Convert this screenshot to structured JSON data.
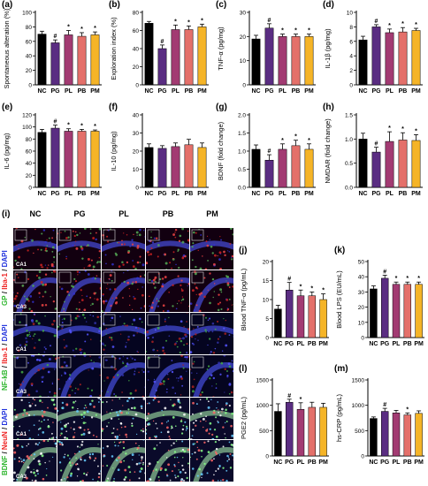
{
  "colors": {
    "NC": "#000000",
    "PG": "#5a2d82",
    "PL": "#a23b72",
    "PB": "#e4706a",
    "PM": "#f5b427"
  },
  "chart_data": [
    {
      "id": "a",
      "label": "(a)",
      "type": "bar",
      "categories": [
        "NC",
        "PG",
        "PL",
        "PB",
        "PM"
      ],
      "values": [
        70,
        58,
        69,
        67,
        69
      ],
      "errors": [
        4,
        4,
        6,
        5,
        4
      ],
      "marks": [
        "",
        "#",
        "*",
        "*",
        "*"
      ],
      "ylabel": "Spontaneous alteration (%)",
      "ylim": [
        0,
        100
      ],
      "yticks": [
        0,
        20,
        40,
        60,
        80,
        100
      ]
    },
    {
      "id": "b",
      "label": "(b)",
      "type": "bar",
      "categories": [
        "NC",
        "PG",
        "PL",
        "PB",
        "PM"
      ],
      "values": [
        68,
        40,
        61,
        61,
        64
      ],
      "errors": [
        2,
        4,
        5,
        4,
        3
      ],
      "marks": [
        "",
        "#",
        "*",
        "*",
        "*"
      ],
      "ylabel": "Exploration index (%)",
      "ylim": [
        0,
        80
      ],
      "yticks": [
        0,
        20,
        40,
        60,
        80
      ]
    },
    {
      "id": "c",
      "label": "(c)",
      "type": "bar",
      "categories": [
        "NC",
        "PG",
        "PL",
        "PB",
        "PM"
      ],
      "values": [
        19,
        23.5,
        20,
        20,
        20
      ],
      "errors": [
        1.5,
        1.8,
        1,
        1,
        1
      ],
      "marks": [
        "",
        "#",
        "*",
        "*",
        "*"
      ],
      "ylabel": "TNF-α (pg/mg)",
      "ylim": [
        0,
        30
      ],
      "yticks": [
        0,
        10,
        20,
        30
      ]
    },
    {
      "id": "d",
      "label": "(d)",
      "type": "bar",
      "categories": [
        "NC",
        "PG",
        "PL",
        "PB",
        "PM"
      ],
      "values": [
        6.2,
        8,
        7.2,
        7.3,
        7.5
      ],
      "errors": [
        0.5,
        0.3,
        0.5,
        0.6,
        0.3
      ],
      "marks": [
        "",
        "#",
        "*",
        "*",
        "*"
      ],
      "ylabel": "IL-1β (pg/mg)",
      "ylim": [
        0,
        10
      ],
      "yticks": [
        0,
        2,
        4,
        6,
        8,
        10
      ]
    },
    {
      "id": "e",
      "label": "(e)",
      "type": "bar",
      "categories": [
        "NC",
        "PG",
        "PL",
        "PB",
        "PM"
      ],
      "values": [
        91,
        98,
        93,
        93,
        93
      ],
      "errors": [
        5,
        5,
        4,
        3,
        2
      ],
      "marks": [
        "",
        "#",
        "*",
        "*",
        "*"
      ],
      "ylabel": "IL-6 (pg/mg)",
      "ylim": [
        0,
        120
      ],
      "yticks": [
        0,
        20,
        40,
        60,
        80,
        100,
        120
      ]
    },
    {
      "id": "f",
      "label": "(f)",
      "type": "bar",
      "categories": [
        "NC",
        "PG",
        "PL",
        "PB",
        "PM"
      ],
      "values": [
        22,
        21.5,
        22.5,
        23.5,
        22
      ],
      "errors": [
        2,
        1.5,
        2,
        3,
        2.5
      ],
      "marks": [
        "",
        "",
        "",
        "",
        ""
      ],
      "ylabel": "IL-10 (pg/mg)",
      "ylim": [
        0,
        40
      ],
      "yticks": [
        0,
        10,
        20,
        30,
        40
      ]
    },
    {
      "id": "g",
      "label": "(g)",
      "type": "bar",
      "categories": [
        "NC",
        "PG",
        "PL",
        "PB",
        "PM"
      ],
      "values": [
        1.05,
        0.75,
        1.05,
        1.15,
        1.05
      ],
      "errors": [
        0.12,
        0.15,
        0.15,
        0.15,
        0.15
      ],
      "marks": [
        "",
        "#",
        "*",
        "*",
        "*"
      ],
      "ylabel": "BDNF (fold change)",
      "ylim": [
        0,
        2
      ],
      "yticks": [
        0,
        0.5,
        1,
        1.5,
        2
      ],
      "ytickfmt": "1"
    },
    {
      "id": "h",
      "label": "(h)",
      "type": "bar",
      "categories": [
        "NC",
        "PG",
        "PL",
        "PB",
        "PM"
      ],
      "values": [
        1,
        0.73,
        0.95,
        0.98,
        0.97
      ],
      "errors": [
        0.12,
        0.1,
        0.2,
        0.15,
        0.12
      ],
      "marks": [
        "",
        "#",
        "*",
        "*",
        "*"
      ],
      "ylabel": "NMDAR  (fold change)",
      "ylim": [
        0,
        1.5
      ],
      "yticks": [
        0,
        0.5,
        1,
        1.5
      ],
      "ytickfmt": "1"
    },
    {
      "id": "j",
      "label": "(j)",
      "type": "bar",
      "categories": [
        "NC",
        "PG",
        "PL",
        "PB",
        "PM"
      ],
      "values": [
        7.5,
        12.5,
        11,
        11,
        10
      ],
      "errors": [
        1,
        2,
        1.5,
        1,
        1.5
      ],
      "marks": [
        "",
        "#",
        "*",
        "*",
        "*"
      ],
      "ylabel": "Blood TNF-α (pg/mL)",
      "ylim": [
        0,
        20
      ],
      "yticks": [
        0,
        5,
        10,
        15,
        20
      ]
    },
    {
      "id": "k",
      "label": "(k)",
      "type": "bar",
      "categories": [
        "NC",
        "PG",
        "PL",
        "PB",
        "PM"
      ],
      "values": [
        32,
        39,
        35,
        35,
        35
      ],
      "errors": [
        2,
        2,
        1.5,
        1.5,
        1.5
      ],
      "marks": [
        "",
        "#",
        "*",
        "*",
        "*"
      ],
      "ylabel": "Blood LPS (EU/mL)",
      "ylim": [
        0,
        50
      ],
      "yticks": [
        0,
        10,
        20,
        30,
        40,
        50
      ]
    },
    {
      "id": "l",
      "label": "(l)",
      "type": "bar",
      "categories": [
        "NC",
        "PG",
        "PL",
        "PB",
        "PM"
      ],
      "values": [
        880,
        1060,
        920,
        960,
        960
      ],
      "errors": [
        150,
        60,
        130,
        100,
        80
      ],
      "marks": [
        "",
        "#",
        "*",
        "",
        ""
      ],
      "ylabel": "PGE2 (pg/mL)",
      "ylim": [
        0,
        1500
      ],
      "yticks": [
        0,
        500,
        1000,
        1500
      ]
    },
    {
      "id": "m",
      "label": "(m)",
      "type": "bar",
      "categories": [
        "NC",
        "PG",
        "PL",
        "PB",
        "PM"
      ],
      "values": [
        740,
        880,
        850,
        810,
        840
      ],
      "errors": [
        30,
        60,
        50,
        40,
        50
      ],
      "marks": [
        "",
        "#",
        "",
        "*",
        ""
      ],
      "ylabel": "hs-CRP (pg/mL)",
      "ylim": [
        0,
        1500
      ],
      "yticks": [
        0,
        500,
        1000,
        1500
      ]
    }
  ],
  "micrograph": {
    "label": "(i)",
    "columns": [
      "NC",
      "PG",
      "PL",
      "PB",
      "PM"
    ],
    "rows": [
      {
        "stain_parts": [
          [
            "GP",
            "green"
          ],
          [
            " / ",
            ""
          ],
          [
            "Iba-1",
            "red"
          ],
          [
            " / ",
            ""
          ],
          [
            "DAPI",
            "blue"
          ]
        ],
        "regions": [
          "CA1",
          "CA3"
        ],
        "theme": "nrn"
      },
      {
        "stain_parts": [
          [
            "NF-kB",
            "green"
          ],
          [
            " / ",
            ""
          ],
          [
            "Iba-1",
            "red"
          ],
          [
            " / ",
            ""
          ],
          [
            "DAPI",
            "blue"
          ]
        ],
        "regions": [
          "CA1",
          "CA3"
        ],
        "theme": "nfk"
      },
      {
        "stain_parts": [
          [
            "BDNF",
            "green"
          ],
          [
            " / ",
            ""
          ],
          [
            "NeuN",
            "red"
          ],
          [
            " / ",
            ""
          ],
          [
            "DAPI",
            "blue"
          ]
        ],
        "regions": [
          "CA1",
          "CA3"
        ],
        "theme": "bdnf"
      }
    ]
  }
}
